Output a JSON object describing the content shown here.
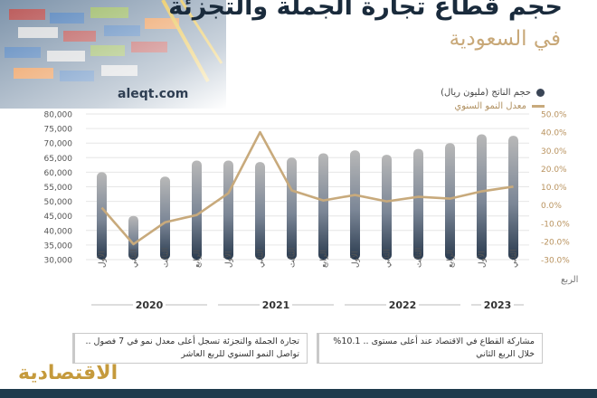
{
  "header": {
    "title": "حجم قطاع تجارة الجملة والتجزئة",
    "subtitle": "في السعودية",
    "site": "aleqt.com"
  },
  "legend": {
    "volume": "حجم الناتج (مليون ريال)",
    "growth": "معدل النمو السنوي"
  },
  "notes": {
    "left": "تجارة الجملة والتجزئة تسجل أعلى معدل نمو في 7 فصول .. تواصل النمو السنوي للربع العاشر",
    "right": "مشاركة القطاع في الاقتصاد عند أعلى مستوى .. 10.1% خلال الربع الثاني"
  },
  "logo": "الاقتصادية",
  "colors": {
    "bar_dark": "#2a3b4f",
    "bar_light": "#b8b8b8",
    "growth_line": "#c8aa7c",
    "axis_right": "#b9935f",
    "axis_left": "#555555",
    "footer": "#1f3b4d"
  },
  "chart_data": {
    "type": "bar",
    "quarter_axis_label": "الربع",
    "categories": [
      "الأول",
      "الثاني",
      "الثالث",
      "الرابع",
      "الأول",
      "الثاني",
      "الثالث",
      "الرابع",
      "الأول",
      "الثاني",
      "الثالث",
      "الرابع",
      "الأول",
      "الثاني"
    ],
    "years": [
      {
        "label": "2020",
        "start": 0,
        "end": 3
      },
      {
        "label": "2021",
        "start": 4,
        "end": 7
      },
      {
        "label": "2022",
        "start": 8,
        "end": 11
      },
      {
        "label": "2023",
        "start": 12,
        "end": 13
      }
    ],
    "series": [
      {
        "name": "حجم الناتج (مليون ريال)",
        "type": "bar",
        "axis": "left",
        "values": [
          60000,
          45000,
          58500,
          64000,
          64000,
          63500,
          65000,
          66500,
          67500,
          66000,
          68000,
          70000,
          73000,
          72500
        ]
      },
      {
        "name": "معدل النمو السنوي",
        "type": "line",
        "axis": "right",
        "values": [
          -1.5,
          -21.5,
          -9.5,
          -5.5,
          6.5,
          40,
          8,
          2.5,
          5.5,
          2,
          4.5,
          3.5,
          7.5,
          10.1
        ]
      }
    ],
    "ylim_left": [
      30000,
      80000
    ],
    "ylim_right": [
      -30,
      50
    ],
    "yticks_left": [
      "30,000",
      "35,000",
      "40,000",
      "45,000",
      "50,000",
      "55,000",
      "60,000",
      "65,000",
      "70,000",
      "75,000",
      "80,000"
    ],
    "yticks_right": [
      "-30.0%",
      "-20.0%",
      "-10.0%",
      "0.0%",
      "10.0%",
      "20.0%",
      "30.0%",
      "40.0%",
      "50.0%"
    ]
  }
}
